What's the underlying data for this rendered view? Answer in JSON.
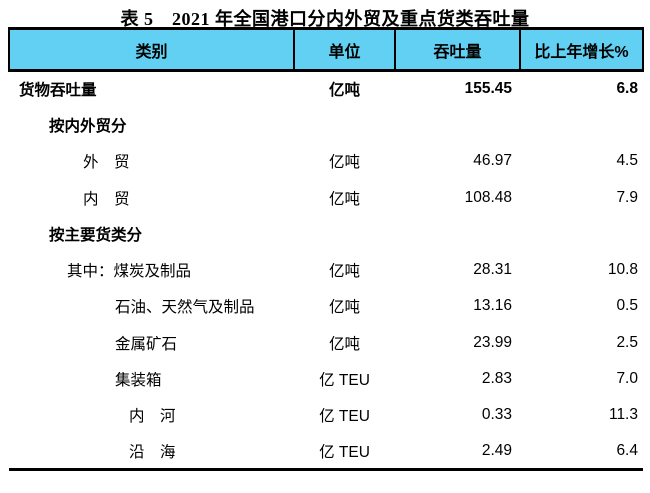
{
  "title": "表 5　2021 年全国港口分内外贸及重点货类吞吐量",
  "colors": {
    "header_bg": "#62d0f2",
    "border": "#000000",
    "text": "#000000",
    "background": "#ffffff"
  },
  "table": {
    "columns": [
      "类别",
      "单位",
      "吞吐量",
      "比上年增长%"
    ],
    "rows": [
      {
        "category": "货物吞吐量",
        "unit": "亿吨",
        "throughput": "155.45",
        "growth": "6.8",
        "bold": true,
        "indent": 0
      },
      {
        "category": "按内外贸分",
        "unit": "",
        "throughput": "",
        "growth": "",
        "bold": true,
        "indent": 1
      },
      {
        "category": "外　贸",
        "unit": "亿吨",
        "throughput": "46.97",
        "growth": "4.5",
        "bold": false,
        "indent": 2
      },
      {
        "category": "内　贸",
        "unit": "亿吨",
        "throughput": "108.48",
        "growth": "7.9",
        "bold": false,
        "indent": 2
      },
      {
        "category": "按主要货类分",
        "unit": "",
        "throughput": "",
        "growth": "",
        "bold": true,
        "indent": 1
      },
      {
        "category": "其中：煤炭及制品",
        "unit": "亿吨",
        "throughput": "28.31",
        "growth": "10.8",
        "bold": false,
        "indent": 3
      },
      {
        "category": "石油、天然气及制品",
        "unit": "亿吨",
        "throughput": "13.16",
        "growth": "0.5",
        "bold": false,
        "indent": 4
      },
      {
        "category": "金属矿石",
        "unit": "亿吨",
        "throughput": "23.99",
        "growth": "2.5",
        "bold": false,
        "indent": 4
      },
      {
        "category": "集装箱",
        "unit": "亿 TEU",
        "throughput": "2.83",
        "growth": "7.0",
        "bold": false,
        "indent": 4
      },
      {
        "category": "内　河",
        "unit": "亿 TEU",
        "throughput": "0.33",
        "growth": "11.3",
        "bold": false,
        "indent": 5
      },
      {
        "category": "沿　海",
        "unit": "亿 TEU",
        "throughput": "2.49",
        "growth": "6.4",
        "bold": false,
        "indent": 5
      }
    ]
  }
}
